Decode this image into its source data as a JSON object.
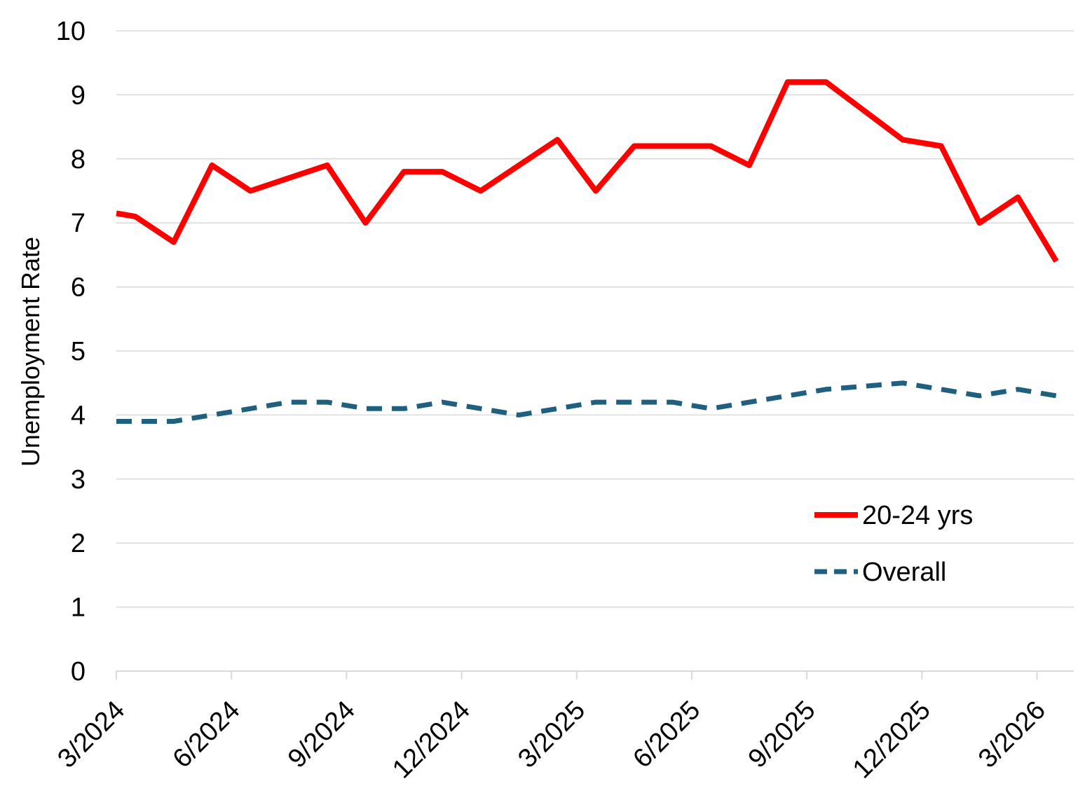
{
  "chart_data": {
    "type": "line",
    "title": "",
    "xlabel": "",
    "ylabel": "Unemployment Rate",
    "ylim": [
      0,
      10
    ],
    "yticks": [
      "0",
      "1",
      "2",
      "3",
      "4",
      "5",
      "6",
      "7",
      "8",
      "9",
      "10"
    ],
    "xtick_labels": [
      "3/2024",
      "6/2024",
      "9/2024",
      "12/2024",
      "3/2025",
      "6/2025",
      "9/2025",
      "12/2025",
      "3/2026"
    ],
    "x": [
      "3/2024",
      "4/2024",
      "5/2024",
      "6/2024",
      "7/2024",
      "8/2024",
      "9/2024",
      "10/2024",
      "11/2024",
      "12/2024",
      "1/2025",
      "2/2025",
      "3/2025",
      "4/2025",
      "5/2025",
      "6/2025",
      "7/2025",
      "8/2025",
      "9/2025",
      "10/2025",
      "11/2025",
      "12/2025",
      "1/2026",
      "2/2026",
      "3/2026"
    ],
    "grid": true,
    "legend_position": "lower-right",
    "series": [
      {
        "name": "20-24 yrs",
        "color": "#ff0000",
        "style": "solid",
        "values": [
          7.1,
          6.7,
          7.9,
          7.5,
          7.7,
          7.9,
          7.0,
          7.8,
          7.8,
          7.5,
          7.9,
          8.3,
          7.5,
          8.2,
          8.2,
          8.2,
          7.9,
          9.2,
          9.2,
          8.75,
          8.3,
          8.2,
          7.0,
          7.4,
          6.4
        ]
      },
      {
        "name": "Overall",
        "color": "#1f5f7f",
        "style": "dashed",
        "values": [
          3.9,
          3.9,
          4.0,
          4.1,
          4.2,
          4.2,
          4.1,
          4.1,
          4.2,
          4.1,
          4.0,
          4.1,
          4.2,
          4.2,
          4.2,
          4.1,
          4.2,
          4.3,
          4.4,
          4.45,
          4.5,
          4.4,
          4.3,
          4.4,
          4.3
        ]
      }
    ]
  }
}
